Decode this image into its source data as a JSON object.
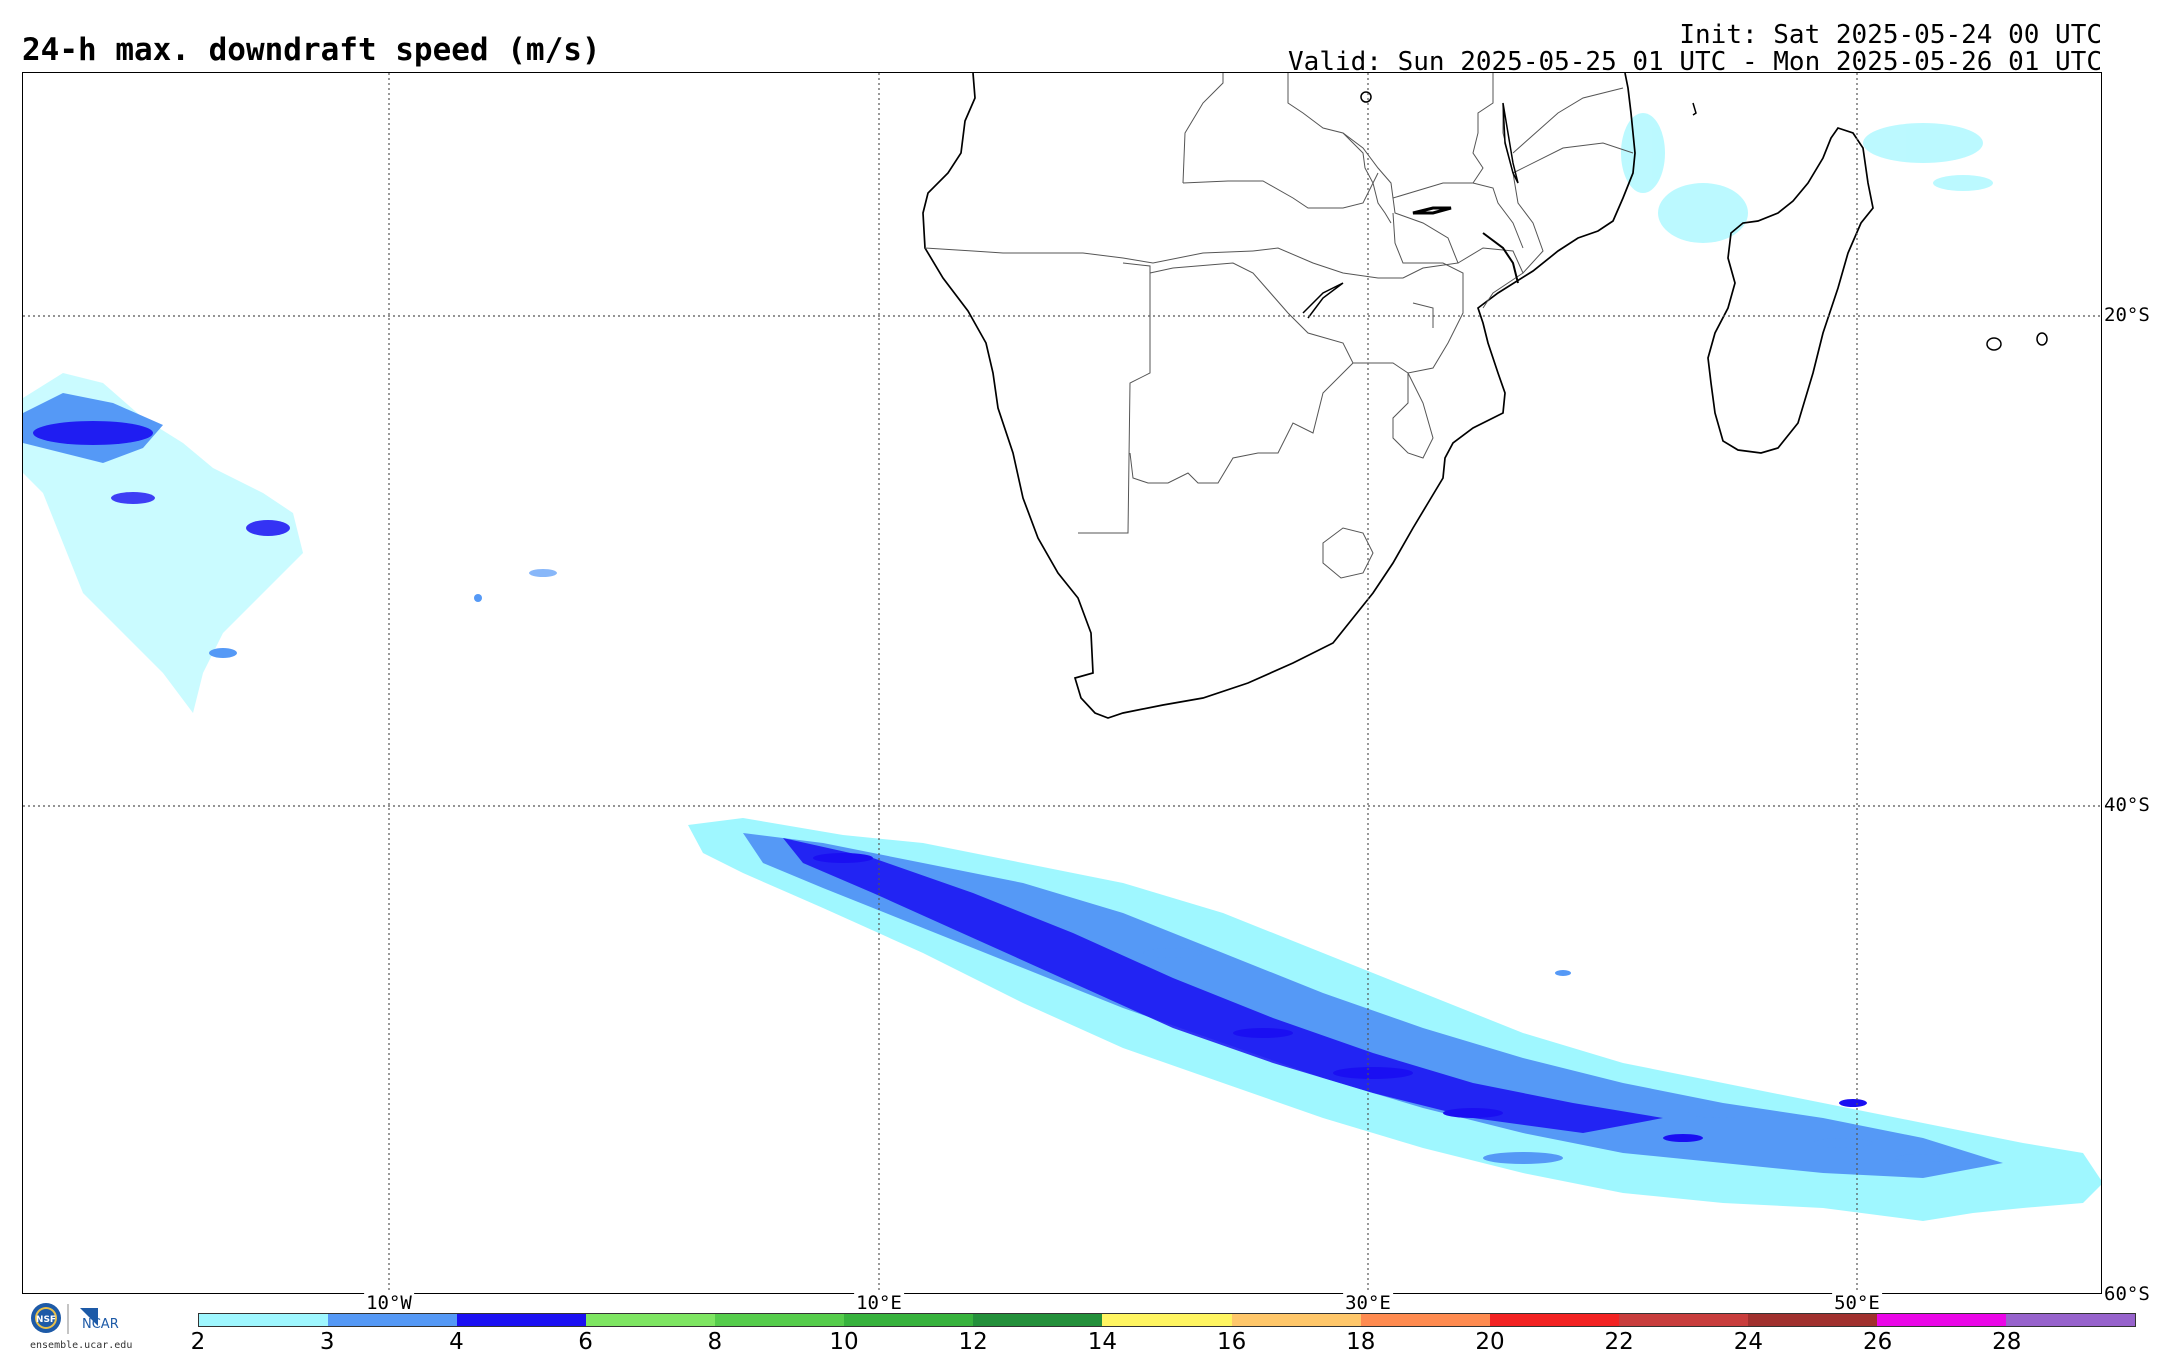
{
  "title": "24-h max. downdraft speed (m/s)",
  "init": "Init: Sat 2025-05-24 00 UTC",
  "valid": "Valid: Sun 2025-05-25 01 UTC - Mon 2025-05-26 01 UTC",
  "map": {
    "lat_labels": [
      "20°S",
      "40°S",
      "60°S"
    ],
    "lon_labels": [
      "10°W",
      "10°E",
      "30°E",
      "50°E"
    ],
    "land_outline_color": "#000000",
    "border_color": "#555555",
    "gridline_style": "dotted"
  },
  "colorbar": {
    "ticks": [
      "2",
      "3",
      "4",
      "6",
      "8",
      "10",
      "12",
      "14",
      "16",
      "18",
      "20",
      "22",
      "24",
      "26",
      "28"
    ],
    "colors": [
      "#9ff7ff",
      "#5599f6",
      "#1a0ff2",
      "#7ee562",
      "#55cc4b",
      "#37b23d",
      "#24903b",
      "#fff561",
      "#ffc76a",
      "#ff8b50",
      "#f22222",
      "#c83d3c",
      "#a0302e",
      "#ea06e7",
      "#9763cc"
    ]
  },
  "logo": {
    "nsf": "NSF",
    "ncar": "NCAR",
    "url": "ensemble.ucar.edu"
  }
}
